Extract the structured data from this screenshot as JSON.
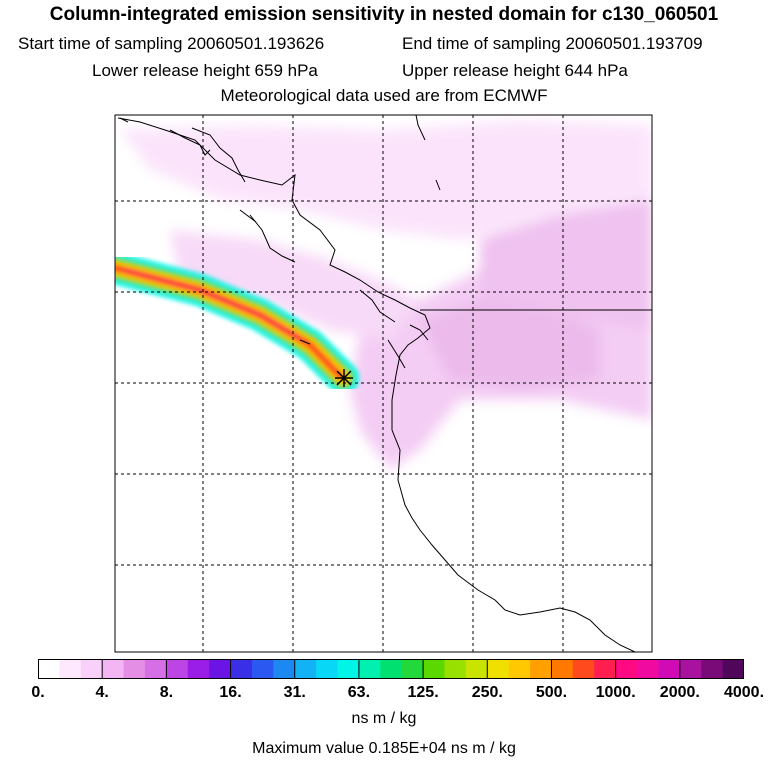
{
  "header": {
    "title": "Column-integrated emission sensitivity in nested domain for c130_060501",
    "start_label": "Start time of sampling 20060501.193626",
    "end_label": "End time of sampling 20060501.193709",
    "lower_label": "Lower release height  659 hPa",
    "upper_label": "Upper release height  644 hPa",
    "met_label": "Meteorological data used are from ECMWF"
  },
  "colorbar": {
    "labels": [
      "0.",
      "4.",
      "8.",
      "16.",
      "31.",
      "63.",
      "125.",
      "250.",
      "500.",
      "1000.",
      "2000.",
      "4000."
    ],
    "colors": [
      "#ffffff",
      "#fde8fd",
      "#f9d0f9",
      "#f3b5f3",
      "#e58ee5",
      "#d66ee6",
      "#bd45e6",
      "#9b1ee6",
      "#6a14e6",
      "#3a2ee6",
      "#2a58f0",
      "#1e88f2",
      "#13b2f5",
      "#08d8f5",
      "#00f5e6",
      "#00f0b0",
      "#00e070",
      "#22d83a",
      "#5ad800",
      "#98e000",
      "#c8e400",
      "#f0e000",
      "#ffc800",
      "#ffa000",
      "#ff7800",
      "#ff4a1e",
      "#ff1e50",
      "#ff0a82",
      "#f00aa0",
      "#d00ab4",
      "#a8129e",
      "#7a0a78",
      "#50065a"
    ],
    "units": "ns m / kg",
    "max_value": "Maximum value  0.185E+04 ns m / kg"
  },
  "map": {
    "plume_colors": [
      "#00f5e6",
      "#5ad800",
      "#ffc800",
      "#ff4a1e",
      "#ff1e50"
    ],
    "background_shading": "#f3c8f3",
    "release_marker": "star"
  }
}
